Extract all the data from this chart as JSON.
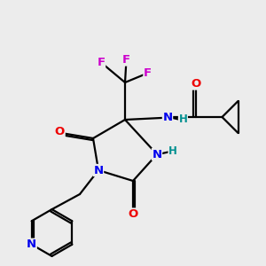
{
  "bg_color": "#ececec",
  "atom_colors": {
    "C": "#000000",
    "N": "#0000ee",
    "O": "#ee0000",
    "F": "#cc00cc",
    "H": "#009090"
  },
  "bond_color": "#000000",
  "bond_lw": 1.6,
  "fontsize": 9.5
}
